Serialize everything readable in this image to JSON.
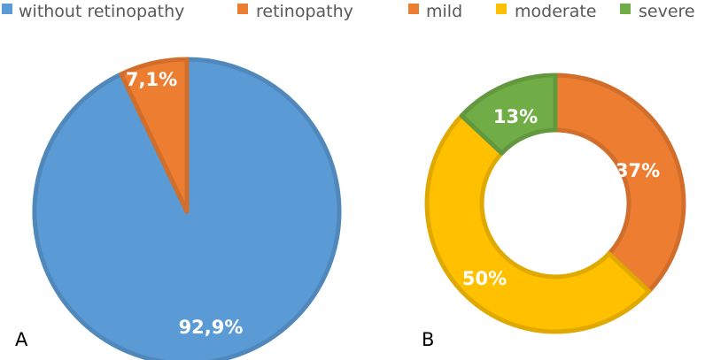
{
  "chart_data": [
    {
      "type": "pie",
      "panel_label": "A",
      "legend_position": "top",
      "slices": [
        {
          "label": "without retinopathy",
          "value": 92.9,
          "display": "92,9%",
          "color": "#5b9bd5"
        },
        {
          "label": "retinopathy",
          "value": 7.1,
          "display": "7,1%",
          "color": "#ed7d31"
        }
      ]
    },
    {
      "type": "pie",
      "variant": "donut",
      "panel_label": "B",
      "legend_position": "top",
      "slices": [
        {
          "label": "mild",
          "value": 37,
          "display": "37%",
          "color": "#ed7d31"
        },
        {
          "label": "moderate",
          "value": 50,
          "display": "50%",
          "color": "#ffc000"
        },
        {
          "label": "severe",
          "value": 13,
          "display": "13%",
          "color": "#70ad47"
        }
      ]
    }
  ]
}
